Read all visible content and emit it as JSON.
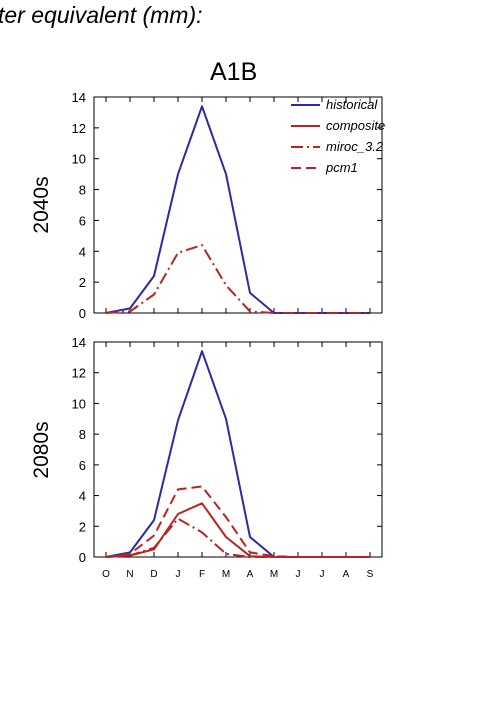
{
  "heading": "ter equivalent (mm):",
  "scenario": "A1B",
  "colors": {
    "historical": "#2a2aaa",
    "model": "#bb2222"
  },
  "chart_data": [
    {
      "type": "line",
      "panel_label": "2040s",
      "x": [
        "O",
        "N",
        "D",
        "J",
        "F",
        "M",
        "A",
        "M",
        "J",
        "J",
        "A",
        "S"
      ],
      "ylim": [
        0,
        14
      ],
      "yticks": [
        0,
        2,
        4,
        6,
        8,
        10,
        12,
        14
      ],
      "xtick_labels_shown": false,
      "legend": {
        "placement": "top-right",
        "entries": [
          "historical",
          "composite",
          "miroc_3.2",
          "pcm1"
        ]
      },
      "series": [
        {
          "name": "historical",
          "style": "solid",
          "color": "#2a2aaa",
          "values": [
            0,
            0.3,
            2.4,
            9.0,
            13.4,
            9.0,
            1.3,
            0,
            0,
            0,
            0,
            0
          ]
        },
        {
          "name": "miroc_3.2",
          "style": "dashdot",
          "color": "#bb2222",
          "values": [
            0,
            0.1,
            1.2,
            3.9,
            4.4,
            1.8,
            0.1,
            0,
            0,
            0,
            0,
            0
          ]
        }
      ]
    },
    {
      "type": "line",
      "panel_label": "2080s",
      "x": [
        "O",
        "N",
        "D",
        "J",
        "F",
        "M",
        "A",
        "M",
        "J",
        "J",
        "A",
        "S"
      ],
      "ylim": [
        0,
        14
      ],
      "yticks": [
        0,
        2,
        4,
        6,
        8,
        10,
        12,
        14
      ],
      "xtick_labels_shown": true,
      "series": [
        {
          "name": "historical",
          "style": "solid",
          "color": "#2a2aaa",
          "values": [
            0,
            0.3,
            2.4,
            8.9,
            13.4,
            9.0,
            1.3,
            0,
            0,
            0,
            0,
            0
          ]
        },
        {
          "name": "composite",
          "style": "solid",
          "color": "#bb2222",
          "values": [
            0,
            0.1,
            0.5,
            2.8,
            3.5,
            1.3,
            0.05,
            0,
            0,
            0,
            0,
            0
          ]
        },
        {
          "name": "miroc_3.2",
          "style": "dashdot",
          "color": "#bb2222",
          "values": [
            0,
            0.1,
            0.6,
            2.5,
            1.6,
            0.2,
            0,
            0,
            0,
            0,
            0,
            0
          ]
        },
        {
          "name": "pcm1",
          "style": "dashed",
          "color": "#bb2222",
          "values": [
            0,
            0.2,
            1.4,
            4.4,
            4.6,
            2.6,
            0.3,
            0.05,
            0,
            0,
            0,
            0
          ]
        }
      ]
    }
  ]
}
